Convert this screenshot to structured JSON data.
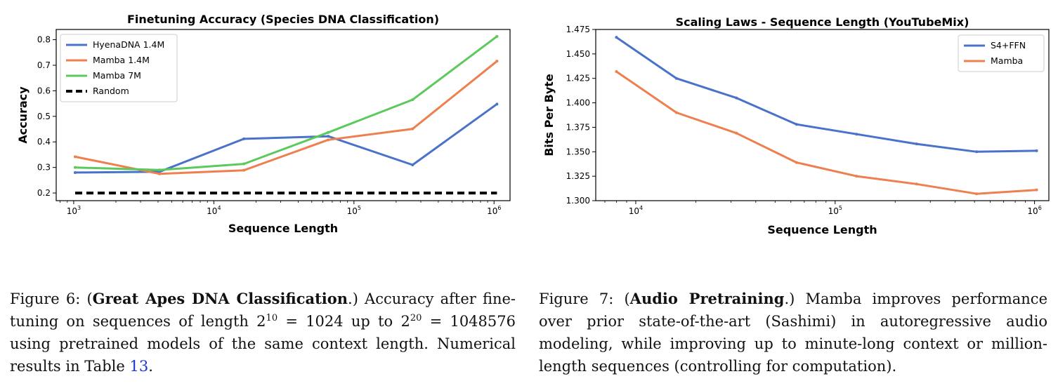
{
  "chart_data": [
    {
      "type": "line",
      "title": "Finetuning Accuracy (Species DNA Classification)",
      "xlabel": "Sequence Length",
      "ylabel": "Accuracy",
      "xscale": "log",
      "xlim": [
        750,
        1300000
      ],
      "ylim": [
        0.17,
        0.84
      ],
      "x": [
        1024,
        4096,
        16384,
        65536,
        262144,
        1048576
      ],
      "yticks": [
        "0.2",
        "0.3",
        "0.4",
        "0.5",
        "0.6",
        "0.7",
        "0.8"
      ],
      "xticks": [
        {
          "base": "10",
          "exp": "3"
        },
        {
          "base": "10",
          "exp": "4"
        },
        {
          "base": "10",
          "exp": "5"
        },
        {
          "base": "10",
          "exp": "6"
        }
      ],
      "legend_position": "top-left",
      "series": [
        {
          "name": "HyenaDNA 1.4M",
          "color": "#4a72c9",
          "values": [
            0.28,
            0.283,
            0.412,
            0.422,
            0.31,
            0.548
          ]
        },
        {
          "name": "Mamba 1.4M",
          "color": "#ee7f4f",
          "values": [
            0.342,
            0.275,
            0.289,
            0.408,
            0.451,
            0.716
          ]
        },
        {
          "name": "Mamba 7M",
          "color": "#5cc95c",
          "values": [
            0.3,
            0.29,
            0.314,
            0.437,
            0.565,
            0.813
          ]
        },
        {
          "name": "Random",
          "color": "#000000",
          "dashed": true,
          "values": [
            0.2,
            0.2,
            0.2,
            0.2,
            0.2,
            0.2
          ]
        }
      ]
    },
    {
      "type": "line",
      "title": "Scaling Laws - Sequence Length (YouTubeMix)",
      "xlabel": "Sequence Length",
      "ylabel": "Bits Per Byte",
      "xscale": "log",
      "xlim": [
        6300,
        1180000
      ],
      "ylim": [
        1.3,
        1.475
      ],
      "x": [
        8000,
        16000,
        32000,
        64000,
        128000,
        256000,
        512000,
        1024000
      ],
      "yticks": [
        "1.300",
        "1.325",
        "1.350",
        "1.375",
        "1.400",
        "1.425",
        "1.450",
        "1.475"
      ],
      "xticks": [
        {
          "base": "10",
          "exp": "4"
        },
        {
          "base": "10",
          "exp": "5"
        },
        {
          "base": "10",
          "exp": "6"
        }
      ],
      "legend_position": "top-right",
      "series": [
        {
          "name": "S4+FFN",
          "color": "#4a72c9",
          "values": [
            1.467,
            1.425,
            1.405,
            1.378,
            1.368,
            1.358,
            1.35,
            1.351
          ]
        },
        {
          "name": "Mamba",
          "color": "#ee7f4f",
          "values": [
            1.432,
            1.39,
            1.369,
            1.339,
            1.325,
            1.317,
            1.307,
            1.311
          ]
        }
      ]
    }
  ],
  "captions": {
    "fig6": {
      "label": "Figure 6: (",
      "bold": "Great Apes DNA Classification",
      "after_bold": ".)  Accuracy after fine-tuning on sequences of length 2",
      "sup1": "10",
      "mid1": " = 1024 up to 2",
      "sup2": "20",
      "mid2": " = 1048576 using pretrained models of the same context length. Numerical results in Table ",
      "ref": "13",
      "end": "."
    },
    "fig7": {
      "label": "Figure 7: (",
      "bold": "Audio Pretraining",
      "after_bold": ".) Mamba improves performance over prior state-of-the-art (Sashimi) in autoregressive audio modeling, while improving up to minute-long context or million-length sequences (controlling for computation)."
    }
  }
}
